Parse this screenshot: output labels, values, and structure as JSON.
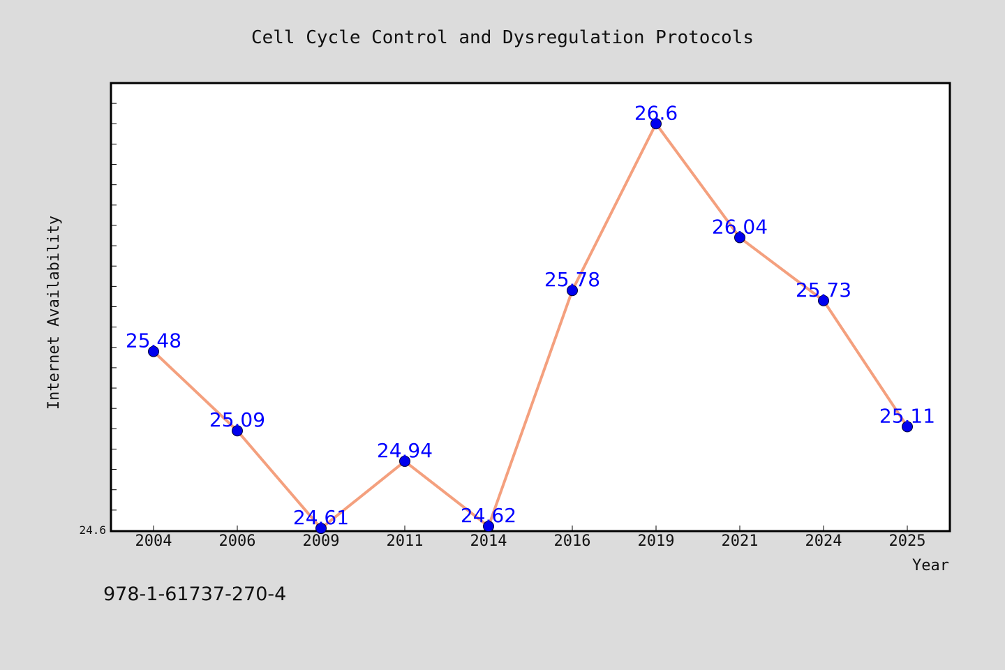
{
  "chart_data": {
    "type": "line",
    "title": "Cell Cycle Control and Dysregulation Protocols",
    "xlabel": "Year",
    "ylabel": "Internet Availability",
    "categories": [
      "2004",
      "2006",
      "2009",
      "2011",
      "2014",
      "2016",
      "2019",
      "2021",
      "2024",
      "2025"
    ],
    "values": [
      25.48,
      25.09,
      24.61,
      24.94,
      24.62,
      25.78,
      26.6,
      26.04,
      25.73,
      25.11
    ],
    "ylim": [
      24.6,
      26.8
    ],
    "y_tick_labels": [
      "24.6"
    ],
    "grid": false,
    "line_color": "#f4a07e",
    "marker_color": "#0000ee",
    "label_color": "#0000ff",
    "background_color": "#dcdcdc",
    "plot_background_color": "#ffffff"
  },
  "footer": {
    "isbn": "978-1-61737-270-4"
  }
}
